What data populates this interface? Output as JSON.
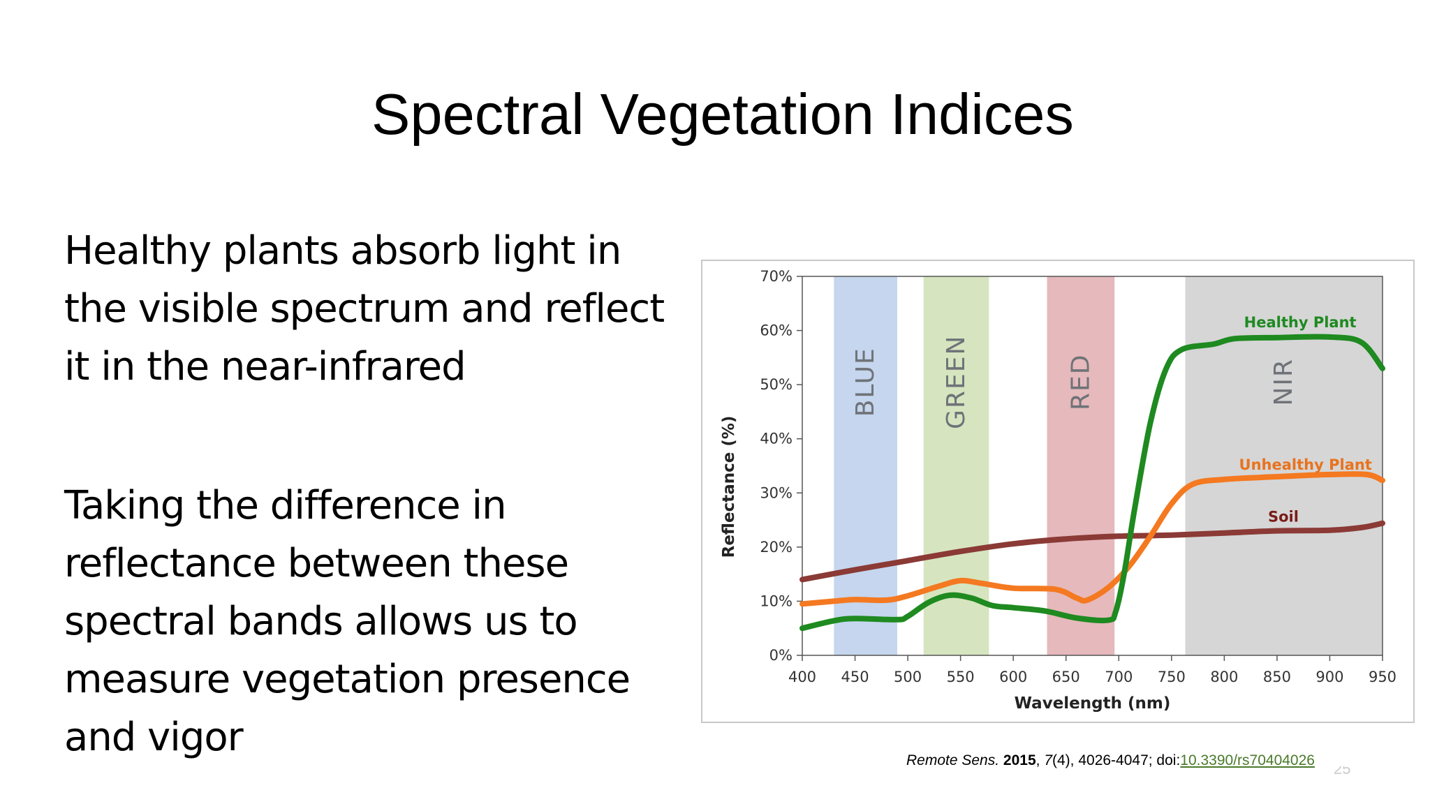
{
  "slide": {
    "title": "Spectral Vegetation Indices",
    "bullets": [
      "Healthy plants absorb light in the visible spectrum and reflect it in the near-infrared",
      "Taking the difference in reflectance between these spectral bands allows us to measure vegetation presence and vigor"
    ],
    "citation": {
      "journal": "Remote Sens.",
      "year": "2015",
      "volume": "7",
      "issue_pages": "(4), 4026-4047; doi:",
      "doi": "10.3390/rs70404026"
    },
    "page_number": "25"
  },
  "chart_data": {
    "type": "line",
    "title": "",
    "xlabel": "Wavelength (nm)",
    "ylabel": "Reflectance (%)",
    "xlim": [
      400,
      950
    ],
    "ylim": [
      0,
      70
    ],
    "x_ticks": [
      "400",
      "450",
      "500",
      "550",
      "600",
      "650",
      "700",
      "750",
      "800",
      "850",
      "900",
      "950"
    ],
    "y_ticks": [
      "0%",
      "10%",
      "20%",
      "30%",
      "40%",
      "50%",
      "60%",
      "70%"
    ],
    "grid": false,
    "bands": [
      {
        "label": "BLUE",
        "from": 430,
        "to": 490,
        "color": "#c5d6ee"
      },
      {
        "label": "GREEN",
        "from": 515,
        "to": 577,
        "color": "#d6e5bf"
      },
      {
        "label": "RED",
        "from": 632,
        "to": 696,
        "color": "#e6b9bc"
      },
      {
        "label": "NIR",
        "from": 763,
        "to": 950,
        "color": "#d6d6d6"
      }
    ],
    "series": [
      {
        "name": "Soil",
        "color": "#8b3a36",
        "label_color": "#7a1c18",
        "points": [
          [
            400,
            14
          ],
          [
            450,
            15.8
          ],
          [
            500,
            17.5
          ],
          [
            550,
            19.2
          ],
          [
            600,
            20.6
          ],
          [
            650,
            21.5
          ],
          [
            700,
            22
          ],
          [
            750,
            22.2
          ],
          [
            800,
            22.6
          ],
          [
            850,
            23
          ],
          [
            900,
            23.1
          ],
          [
            930,
            23.6
          ],
          [
            950,
            24.4
          ]
        ]
      },
      {
        "name": "Unhealthy Plant",
        "color": "#f47920",
        "label_color": "#e8731e",
        "points": [
          [
            400,
            9.5
          ],
          [
            430,
            10
          ],
          [
            450,
            10.3
          ],
          [
            480,
            10.2
          ],
          [
            500,
            11
          ],
          [
            530,
            12.8
          ],
          [
            550,
            13.8
          ],
          [
            570,
            13.3
          ],
          [
            600,
            12.4
          ],
          [
            640,
            12.2
          ],
          [
            660,
            10.6
          ],
          [
            670,
            10.2
          ],
          [
            690,
            12.5
          ],
          [
            710,
            16.5
          ],
          [
            730,
            22
          ],
          [
            750,
            28
          ],
          [
            770,
            31.6
          ],
          [
            800,
            32.5
          ],
          [
            850,
            33
          ],
          [
            900,
            33.4
          ],
          [
            935,
            33.4
          ],
          [
            950,
            32.3
          ]
        ]
      },
      {
        "name": "Healthy Plant",
        "color": "#1e8a20",
        "label_color": "#1e8a20",
        "points": [
          [
            400,
            5
          ],
          [
            430,
            6.4
          ],
          [
            450,
            6.8
          ],
          [
            490,
            6.6
          ],
          [
            500,
            7.2
          ],
          [
            520,
            9.8
          ],
          [
            540,
            11.1
          ],
          [
            560,
            10.6
          ],
          [
            580,
            9.2
          ],
          [
            600,
            8.8
          ],
          [
            630,
            8.2
          ],
          [
            660,
            6.9
          ],
          [
            690,
            6.5
          ],
          [
            697,
            8
          ],
          [
            705,
            15
          ],
          [
            715,
            27
          ],
          [
            730,
            43
          ],
          [
            745,
            53
          ],
          [
            760,
            56.5
          ],
          [
            790,
            57.5
          ],
          [
            810,
            58.5
          ],
          [
            850,
            58.7
          ],
          [
            900,
            58.8
          ],
          [
            930,
            57.8
          ],
          [
            950,
            53
          ]
        ]
      }
    ],
    "series_label_positions": {
      "Healthy Plant": [
        872,
        61.5
      ],
      "Unhealthy Plant": [
        877,
        35.2
      ],
      "Soil": [
        856,
        25.6
      ]
    }
  }
}
